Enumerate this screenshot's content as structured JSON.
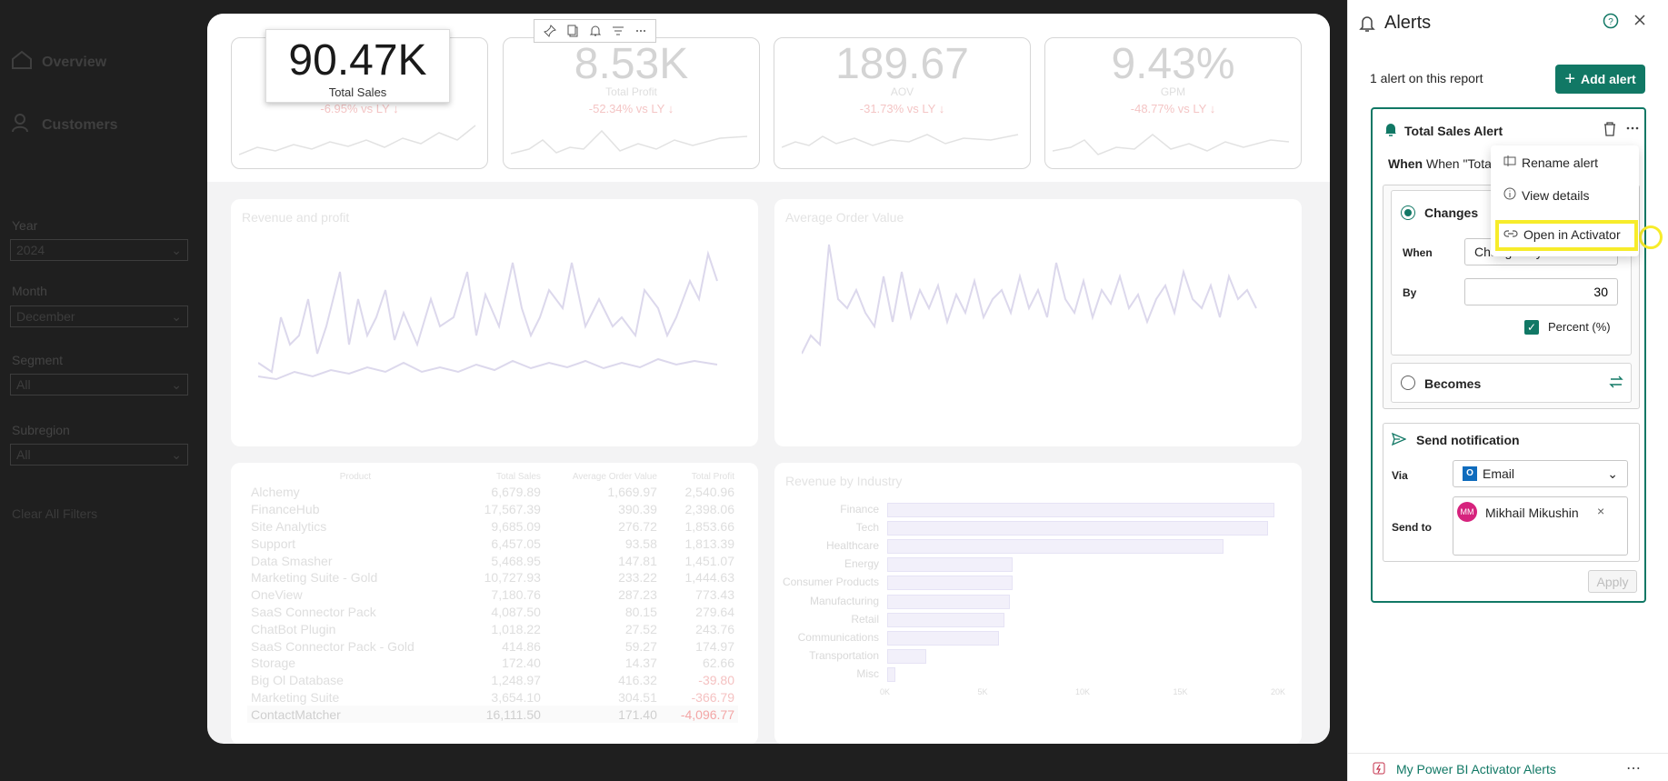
{
  "nav": {
    "items": [
      {
        "label": "Overview"
      },
      {
        "label": "Customers"
      }
    ]
  },
  "filters": [
    {
      "label": "Year",
      "value": "2024"
    },
    {
      "label": "Month",
      "value": "December"
    },
    {
      "label": "Segment",
      "value": "All"
    },
    {
      "label": "Subregion",
      "value": "All"
    }
  ],
  "clear_filters": "Clear All Filters",
  "kpis": [
    {
      "value": "90.47K",
      "label": "Total Sales",
      "change": "-6.95% vs LY ↓"
    },
    {
      "value": "8.53K",
      "label": "Total Profit",
      "change": "-52.34% vs LY ↓"
    },
    {
      "value": "189.67",
      "label": "AOV",
      "change": "-31.73% vs LY ↓"
    },
    {
      "value": "9.43%",
      "label": "GPM",
      "change": "-48.77% vs LY ↓"
    }
  ],
  "charts": {
    "revenue_title": "Revenue and profit",
    "aov_title": "Average Order Value",
    "industry_title": "Revenue by Industry"
  },
  "table": {
    "headers": [
      "Product",
      "Total Sales",
      "Average Order Value",
      "Total Profit"
    ],
    "rows": [
      [
        "Alchemy",
        "6,679.89",
        "1,669.97",
        "2,540.96"
      ],
      [
        "FinanceHub",
        "17,567.39",
        "390.39",
        "2,398.06"
      ],
      [
        "Site Analytics",
        "9,685.09",
        "276.72",
        "1,853.66"
      ],
      [
        "Support",
        "6,457.05",
        "93.58",
        "1,813.39"
      ],
      [
        "Data Smasher",
        "5,468.95",
        "147.81",
        "1,451.07"
      ],
      [
        "Marketing Suite - Gold",
        "10,727.93",
        "233.22",
        "1,444.63"
      ],
      [
        "OneView",
        "7,180.76",
        "287.23",
        "773.43"
      ],
      [
        "SaaS Connector Pack",
        "4,087.50",
        "80.15",
        "279.64"
      ],
      [
        "ChatBot Plugin",
        "1,018.22",
        "27.52",
        "243.76"
      ],
      [
        "SaaS Connector Pack - Gold",
        "414.86",
        "59.27",
        "174.97"
      ],
      [
        "Storage",
        "172.40",
        "14.37",
        "62.66"
      ],
      [
        "Big Ol Database",
        "1,248.97",
        "416.32",
        "-39.80"
      ],
      [
        "Marketing Suite",
        "3,654.10",
        "304.51",
        "-366.79"
      ],
      [
        "ContactMatcher",
        "16,111.50",
        "171.40",
        "-4,096.77"
      ]
    ]
  },
  "chart_data": {
    "type": "bar",
    "title": "Revenue by Industry",
    "categories": [
      "Finance",
      "Tech",
      "Healthcare",
      "Energy",
      "Consumer Products",
      "Manufacturing",
      "Retail",
      "Communications",
      "Transportation",
      "Misc"
    ],
    "values": [
      19800,
      19500,
      17200,
      6400,
      6400,
      6300,
      6000,
      5700,
      2000,
      400
    ],
    "xlim": [
      0,
      20000
    ],
    "xticks": [
      "0K",
      "5K",
      "10K",
      "15K",
      "20K"
    ]
  },
  "alerts": {
    "title": "Alerts",
    "count_text": "1 alert on this report",
    "add_label": "Add alert",
    "card": {
      "title": "Total Sales Alert",
      "when_text": "When \"Total Sales",
      "changes_label": "Changes",
      "when_label": "When",
      "when_value": "Changes by",
      "by_label": "By",
      "by_value": "30",
      "percent_label": "Percent (%)",
      "becomes_label": "Becomes",
      "send_label": "Send notification",
      "via_label": "Via",
      "via_value": "Email",
      "sendto_label": "Send to",
      "recipient_initials": "MM",
      "recipient": "Mikhail Mikushin",
      "apply_label": "Apply"
    },
    "menu": {
      "rename": "Rename alert",
      "details": "View details",
      "open": "Open in Activator"
    },
    "footer": "My Power BI Activator Alerts"
  },
  "colors": {
    "accent": "#117865",
    "highlight": "#f7ec2a"
  }
}
